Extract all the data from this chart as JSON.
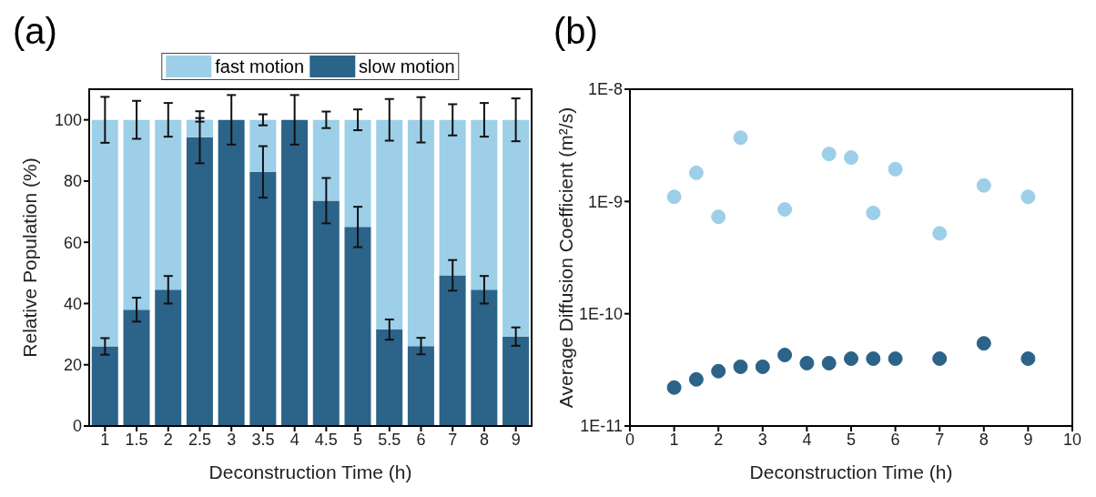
{
  "chart_data": [
    {
      "type": "bar",
      "title": "(a)",
      "xlabel": "Deconstruction Time (h)",
      "ylabel": "Relative Population (%)",
      "stacked": true,
      "legend": "top",
      "categories": [
        "1",
        "1.5",
        "2",
        "2.5",
        "3",
        "3.5",
        "4",
        "4.5",
        "5",
        "5.5",
        "6",
        "7",
        "8",
        "9"
      ],
      "ylim": [
        0,
        110
      ],
      "yticks": [
        0,
        20,
        40,
        60,
        80,
        100
      ],
      "series": [
        {
          "name": "slow motion",
          "color": "#2b6389",
          "values": [
            26,
            38,
            44.5,
            94.3,
            100,
            83,
            100,
            73.6,
            65,
            31.5,
            26.1,
            49.2,
            44.5,
            29.2
          ],
          "errors": [
            2.7,
            3.9,
            4.5,
            8.5,
            8.1,
            8.4,
            8.1,
            7.4,
            6.6,
            3.3,
            2.7,
            5,
            4.5,
            3
          ]
        },
        {
          "name": "fast motion",
          "color": "#9dcfe8",
          "values": [
            74,
            62,
            55.5,
            5.7,
            0,
            17,
            0,
            26.4,
            35,
            68.5,
            73.9,
            50.8,
            55.5,
            70.8
          ],
          "errors": [
            7.5,
            6.2,
            5.5,
            0.6,
            null,
            1.8,
            null,
            2.7,
            3.4,
            6.8,
            7.4,
            5.1,
            5.5,
            7
          ]
        }
      ]
    },
    {
      "type": "scatter",
      "title": "(b)",
      "xlabel": "Deconstruction Time (h)",
      "ylabel": "Average Diffusion Coefficient (m²/s)",
      "log": "y",
      "marker": "circle",
      "x": [
        1,
        1.5,
        2,
        2.5,
        3,
        3.5,
        4,
        4.5,
        5,
        5.5,
        6,
        7,
        8,
        9
      ],
      "xlim": [
        0,
        10
      ],
      "xticks": [
        0,
        1,
        2,
        3,
        4,
        5,
        6,
        7,
        8,
        9,
        10
      ],
      "ylim": [
        1e-11,
        1e-08
      ],
      "yticks": [
        {
          "value": 1e-11,
          "label": "1E-11"
        },
        {
          "value": 1e-10,
          "label": "1E-10"
        },
        {
          "value": 1e-09,
          "label": "1E-9"
        },
        {
          "value": 1e-08,
          "label": "1E-8"
        }
      ],
      "series": [
        {
          "color": "#9dcfe8",
          "x": [
            1,
            1.5,
            2,
            2.5,
            3.5,
            4.5,
            5,
            5.5,
            6,
            7,
            8,
            9
          ],
          "values": [
            1.1e-09,
            1.8e-09,
            7.3e-10,
            3.7e-09,
            8.5e-10,
            2.65e-09,
            2.46e-09,
            7.9e-10,
            1.94e-09,
            5.2e-10,
            1.39e-09,
            1.1e-09
          ]
        },
        {
          "color": "#2b6389",
          "values": [
            2.2e-11,
            2.6e-11,
            3.08e-11,
            3.37e-11,
            3.37e-11,
            4.29e-11,
            3.63e-11,
            3.63e-11,
            3.98e-11,
            3.98e-11,
            3.98e-11,
            3.98e-11,
            5.45e-11,
            3.98e-11
          ]
        }
      ]
    }
  ]
}
